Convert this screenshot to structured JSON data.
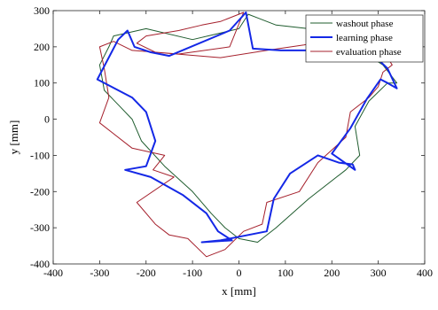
{
  "chart_data": {
    "type": "line",
    "xlabel": "x [mm]",
    "ylabel": "y [mm]",
    "xlim": [
      -400,
      400
    ],
    "ylim": [
      -400,
      300
    ],
    "xticks": [
      -400,
      -300,
      -200,
      -100,
      0,
      100,
      200,
      300,
      400
    ],
    "yticks": [
      -400,
      -300,
      -200,
      -100,
      0,
      100,
      200,
      300
    ],
    "xtick_labels": [
      "-400",
      "-300",
      "-200",
      "-100",
      "0",
      "100",
      "200",
      "300",
      "400"
    ],
    "ytick_labels": [
      "-400",
      "-300",
      "-200",
      "-100",
      "0",
      "100",
      "200",
      "300"
    ],
    "grid": false,
    "legend_position": "top-right",
    "series": [
      {
        "name": "washout phase",
        "color": "#1f5c2e",
        "stroke": "thin",
        "x": [
          20,
          0,
          -100,
          -200,
          -270,
          -280,
          -300,
          -290,
          -260,
          -230,
          -210,
          -160,
          -100,
          -60,
          -30,
          0,
          40,
          80,
          150,
          230,
          260,
          250,
          280,
          320,
          340,
          310,
          250,
          200,
          150,
          80,
          40,
          20
        ],
        "y": [
          290,
          250,
          220,
          250,
          230,
          200,
          150,
          80,
          40,
          0,
          -60,
          -130,
          -200,
          -260,
          -300,
          -330,
          -340,
          -300,
          -220,
          -140,
          -100,
          -20,
          50,
          100,
          100,
          150,
          200,
          230,
          250,
          260,
          280,
          290
        ]
      },
      {
        "name": "learning phase",
        "color": "#1428e6",
        "stroke": "thick",
        "x": [
          15,
          -20,
          -150,
          -190,
          -225,
          -240,
          -260,
          -305,
          -230,
          -200,
          -180,
          -200,
          -245,
          -190,
          -120,
          -70,
          -45,
          -15,
          -80,
          -40,
          60,
          75,
          110,
          170,
          215,
          245,
          250,
          200,
          240,
          275,
          305,
          320,
          340,
          320,
          300,
          260,
          250,
          210,
          150,
          90,
          30,
          15
        ],
        "y": [
          295,
          245,
          175,
          185,
          200,
          245,
          220,
          110,
          60,
          20,
          -60,
          -130,
          -140,
          -160,
          -210,
          -260,
          -310,
          -335,
          -340,
          -335,
          -310,
          -220,
          -150,
          -100,
          -120,
          -125,
          -140,
          -95,
          -25,
          55,
          110,
          100,
          85,
          140,
          165,
          185,
          200,
          195,
          190,
          190,
          195,
          295
        ]
      },
      {
        "name": "evaluation phase",
        "color": "#a5202c",
        "stroke": "thin",
        "x": [
          10,
          -20,
          -130,
          -230,
          -270,
          -300,
          -290,
          -280,
          -300,
          -230,
          -160,
          -185,
          -140,
          -220,
          -180,
          -150,
          -110,
          -70,
          -30,
          10,
          50,
          60,
          130,
          170,
          230,
          240,
          280,
          300,
          310,
          330,
          310,
          290,
          250,
          200,
          140,
          60,
          -40,
          -180,
          -220,
          -200,
          -130,
          -80,
          -40,
          10
        ],
        "y": [
          295,
          200,
          180,
          190,
          215,
          200,
          140,
          60,
          -10,
          -80,
          -100,
          -140,
          -160,
          -230,
          -290,
          -320,
          -330,
          -380,
          -360,
          -310,
          -290,
          -230,
          -200,
          -120,
          -50,
          20,
          60,
          90,
          130,
          150,
          190,
          230,
          225,
          220,
          205,
          190,
          170,
          185,
          210,
          230,
          245,
          260,
          270,
          295
        ]
      }
    ]
  }
}
